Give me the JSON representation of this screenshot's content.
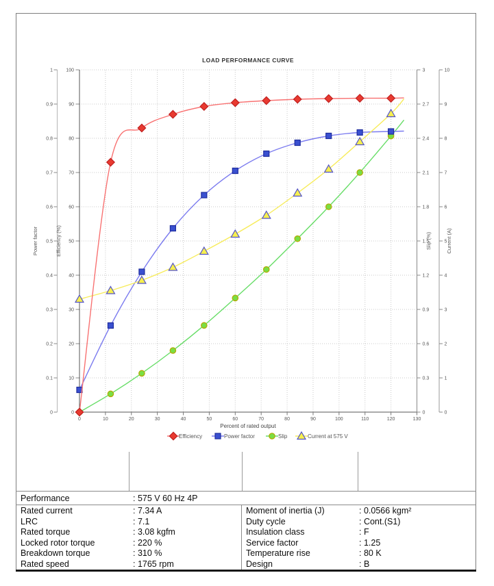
{
  "chart_data": {
    "type": "line",
    "title": "LOAD PERFORMANCE CURVE",
    "xlabel": "Percent of rated output",
    "x_axis": {
      "min": 0,
      "max": 130,
      "tick_step": 10
    },
    "x": [
      0,
      12,
      24,
      36,
      48,
      60,
      72,
      84,
      96,
      108,
      120
    ],
    "grid": "dotted",
    "legend_position": "bottom",
    "axes": {
      "power_factor": {
        "label": "Power factor",
        "min": 0,
        "max": 1,
        "step": 0.1,
        "side": "left-outer"
      },
      "efficiency": {
        "label": "Efficiency (%)",
        "min": 0,
        "max": 100,
        "step": 10,
        "side": "left-inner"
      },
      "slip": {
        "label": "Slip (%)",
        "min": 0,
        "max": 3,
        "step": 0.3,
        "side": "right-inner"
      },
      "current": {
        "label": "Current (A)",
        "min": 0,
        "max": 10,
        "step": 1,
        "side": "right-outer"
      }
    },
    "series": [
      {
        "name": "Slip",
        "axis": "slip",
        "marker": "circle",
        "line_color": "#66dd66",
        "marker_fill": "#7ade44",
        "marker_stroke": "#b4a800",
        "values": [
          0,
          0.16,
          0.34,
          0.54,
          0.76,
          1.0,
          1.25,
          1.52,
          1.8,
          2.1,
          2.42
        ],
        "extend_x": 125,
        "extend_y": 2.56
      },
      {
        "name": "Power factor",
        "axis": "power_factor",
        "marker": "square",
        "line_color": "#7b7bef",
        "marker_fill": "#3a50d0",
        "marker_stroke": "#1f2d9e",
        "values": [
          0.065,
          0.253,
          0.41,
          0.537,
          0.634,
          0.705,
          0.755,
          0.787,
          0.807,
          0.817,
          0.82
        ],
        "extend_x": 125,
        "extend_y": 0.821
      },
      {
        "name": "Current at 575 V",
        "axis": "current",
        "marker": "triangle",
        "line_color": "#f7ec5a",
        "marker_fill": "#f6ef4e",
        "marker_stroke": "#5353c8",
        "values": [
          3.3,
          3.55,
          3.85,
          4.23,
          4.7,
          5.2,
          5.75,
          6.4,
          7.1,
          7.9,
          8.72
        ],
        "extend_x": 125,
        "extend_y": 9.15
      },
      {
        "name": "Efficiency",
        "axis": "efficiency",
        "marker": "diamond",
        "line_color": "#f87272",
        "marker_fill": "#e83a30",
        "marker_stroke": "#bf1f1f",
        "values": [
          0,
          73,
          83,
          87,
          89.3,
          90.4,
          91,
          91.4,
          91.6,
          91.7,
          91.7
        ],
        "extend_x": 125,
        "extend_y": 91.8
      }
    ],
    "legend_order": [
      "Efficiency",
      "Power factor",
      "Slip",
      "Current at 575 V"
    ],
    "text_color": "#555555",
    "grid_color": "#c8c8c8"
  },
  "table": {
    "performance": {
      "label": "Performance",
      "value": ": 575 V 60 Hz 4P"
    },
    "left_rows": [
      {
        "label": "Rated current",
        "value": ": 7.34 A"
      },
      {
        "label": "LRC",
        "value": ": 7.1"
      },
      {
        "label": "Rated torque",
        "value": ": 3.08 kgfm"
      },
      {
        "label": "Locked rotor torque",
        "value": ": 220 %"
      },
      {
        "label": "Breakdown torque",
        "value": ": 310 %"
      },
      {
        "label": "Rated speed",
        "value": ": 1765 rpm"
      }
    ],
    "right_rows": [
      {
        "label": "Moment of inertia (J)",
        "value": ": 0.0566 kgm²"
      },
      {
        "label": "Duty cycle",
        "value": ": Cont.(S1)"
      },
      {
        "label": "Insulation class",
        "value": ": F"
      },
      {
        "label": "Service factor",
        "value": ": 1.25"
      },
      {
        "label": "Temperature rise",
        "value": ": 80 K"
      },
      {
        "label": "Design",
        "value": ": B"
      }
    ]
  }
}
